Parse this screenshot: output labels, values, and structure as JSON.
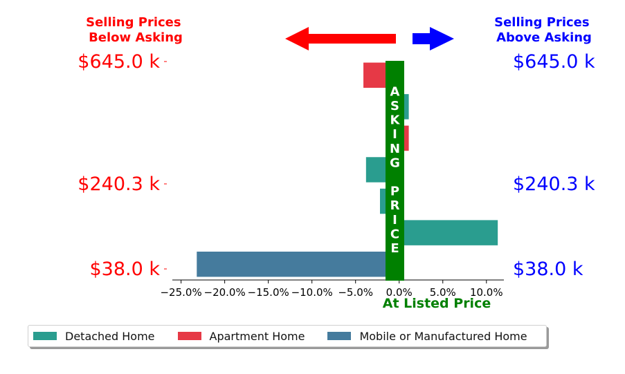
{
  "chart_data": {
    "type": "bar",
    "orientation": "horizontal",
    "xlim": [
      -26.0,
      12.0
    ],
    "x_ticks": [
      -25,
      -20,
      -15,
      -10,
      -5,
      0,
      5,
      10
    ],
    "x_tick_labels": [
      "−25.0%",
      "−20.0%",
      "−15.0%",
      "−10.0%",
      "−5.0%",
      "0.0%",
      "5.0%",
      "10.0%"
    ],
    "xlabel": "At Listed Price",
    "left_title": "Selling Prices\nBelow Asking",
    "right_title": "Selling Prices\nAbove Asking",
    "y_tick_labels": [
      "$645.0 k",
      "$240.3 k",
      "$38.0 k"
    ],
    "center_label": "ASKING PRICE",
    "bars": [
      {
        "series": "Apartment Home",
        "value": -4.1
      },
      {
        "series": "Detached Home",
        "value": 1.1
      },
      {
        "series": "Apartment Home",
        "value": 1.1
      },
      {
        "series": "Detached Home",
        "value": -3.8
      },
      {
        "series": "Detached Home",
        "value": -2.2
      },
      {
        "series": "Detached Home",
        "value": 11.3
      },
      {
        "series": "Mobile or Manufactured Home",
        "value": -23.2
      }
    ],
    "legend": [
      {
        "name": "Detached Home",
        "color": "#2a9d8f"
      },
      {
        "name": "Apartment Home",
        "color": "#e63946"
      },
      {
        "name": "Mobile or Manufactured Home",
        "color": "#457b9d"
      }
    ],
    "colors": {
      "below": "#ff0000",
      "above": "#0000ff",
      "asking": "#008000"
    }
  }
}
